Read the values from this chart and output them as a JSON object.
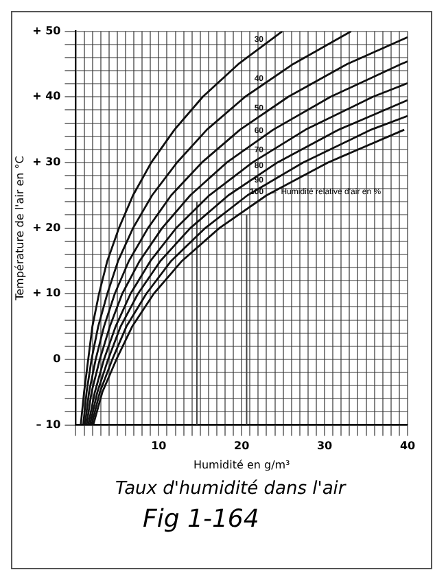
{
  "chart_data": {
    "type": "line",
    "title": "Taux d'humidité dans l'air",
    "xlabel": "Humidité en g/m³",
    "ylabel": "Température de l'air en °C",
    "xlim": [
      0,
      40
    ],
    "ylim": [
      -10,
      50
    ],
    "xticks": [
      {
        "value": 0,
        "label": null
      },
      {
        "value": 1,
        "label": null
      },
      {
        "value": 2,
        "label": null
      },
      {
        "value": 3,
        "label": null
      },
      {
        "value": 4,
        "label": null
      },
      {
        "value": 5,
        "label": null
      },
      {
        "value": 6,
        "label": null
      },
      {
        "value": 7,
        "label": null
      },
      {
        "value": 8,
        "label": null
      },
      {
        "value": 9,
        "label": null
      },
      10,
      {
        "value": 11,
        "label": null
      },
      {
        "value": 12,
        "label": null
      },
      {
        "value": 13,
        "label": null
      },
      {
        "value": 14,
        "label": null
      },
      {
        "value": 15,
        "label": null
      },
      {
        "value": 16,
        "label": null
      },
      {
        "value": 17,
        "label": null
      },
      {
        "value": 18,
        "label": null
      },
      {
        "value": 19,
        "label": null
      },
      20,
      {
        "value": 21,
        "label": null
      },
      {
        "value": 22,
        "label": null
      },
      {
        "value": 23,
        "label": null
      },
      {
        "value": 24,
        "label": null
      },
      {
        "value": 25,
        "label": null
      },
      {
        "value": 26,
        "label": null
      },
      {
        "value": 27,
        "label": null
      },
      {
        "value": 28,
        "label": null
      },
      {
        "value": 29,
        "label": null
      },
      30,
      {
        "value": 31,
        "label": null
      },
      {
        "value": 32,
        "label": null
      },
      {
        "value": 33,
        "label": null
      },
      {
        "value": 34,
        "label": null
      },
      {
        "value": 35,
        "label": null
      },
      {
        "value": 36,
        "label": null
      },
      {
        "value": 37,
        "label": null
      },
      {
        "value": 38,
        "label": null
      },
      {
        "value": 39,
        "label": null
      },
      40
    ],
    "yticks": [
      {
        "value": -10,
        "label": "– 10"
      },
      {
        "value": -8,
        "label": null
      },
      {
        "value": -6,
        "label": null
      },
      {
        "value": -4,
        "label": null
      },
      {
        "value": -2,
        "label": null
      },
      0,
      {
        "value": 2,
        "label": null
      },
      {
        "value": 4,
        "label": null
      },
      {
        "value": 6,
        "label": null
      },
      {
        "value": 8,
        "label": null
      },
      {
        "value": 10,
        "label": "+ 10"
      },
      {
        "value": 12,
        "label": null
      },
      {
        "value": 14,
        "label": null
      },
      {
        "value": 16,
        "label": null
      },
      {
        "value": 18,
        "label": null
      },
      {
        "value": 20,
        "label": "+ 20"
      },
      {
        "value": 22,
        "label": null
      },
      {
        "value": 24,
        "label": null
      },
      {
        "value": 26,
        "label": null
      },
      {
        "value": 28,
        "label": null
      },
      {
        "value": 30,
        "label": "+ 30"
      },
      {
        "value": 32,
        "label": null
      },
      {
        "value": 34,
        "label": null
      },
      {
        "value": 36,
        "label": null
      },
      {
        "value": 38,
        "label": null
      },
      {
        "value": 40,
        "label": "+ 40"
      },
      {
        "value": 42,
        "label": null
      },
      {
        "value": 44,
        "label": null
      },
      {
        "value": 46,
        "label": null
      },
      {
        "value": 48,
        "label": null
      },
      {
        "value": 50,
        "label": "+ 50"
      }
    ],
    "grid": true,
    "marker": "none",
    "line_style": "solid",
    "series": [
      {
        "name": "30",
        "color": "#111111",
        "x": [
          0.6,
          1.0,
          1.5,
          2.0,
          2.8,
          3.8,
          5.2,
          6.9,
          9.1,
          11.9,
          15.3,
          19.6,
          24.9
        ],
        "values": [
          -10,
          -5,
          0,
          5,
          10,
          15,
          20,
          25,
          30,
          35,
          40,
          45,
          50
        ]
      },
      {
        "name": "40",
        "color": "#111111",
        "x": [
          0.9,
          1.3,
          1.9,
          2.7,
          3.8,
          5.1,
          6.9,
          9.2,
          12.2,
          15.8,
          20.4,
          26.2,
          33.2
        ],
        "values": [
          -10,
          -5,
          0,
          5,
          10,
          15,
          20,
          25,
          30,
          35,
          40,
          45,
          50
        ]
      },
      {
        "name": "50",
        "color": "#111111",
        "x": [
          1.1,
          1.6,
          2.4,
          3.4,
          4.7,
          6.4,
          8.7,
          11.5,
          15.2,
          19.8,
          25.6,
          32.7,
          40
        ],
        "values": [
          -10,
          -5,
          0,
          5,
          10,
          15,
          20,
          25,
          30,
          35,
          40,
          45,
          49.1
        ]
      },
      {
        "name": "60",
        "color": "#111111",
        "x": [
          1.3,
          1.9,
          2.9,
          4.1,
          5.6,
          7.7,
          10.4,
          13.8,
          18.2,
          23.8,
          30.7,
          39.2,
          40
        ],
        "values": [
          -10,
          -5,
          0,
          5,
          10,
          15,
          20,
          25,
          30,
          35,
          40,
          45,
          45.4
        ]
      },
      {
        "name": "70",
        "color": "#111111",
        "x": [
          1.5,
          2.3,
          3.4,
          4.8,
          6.6,
          9.0,
          12.1,
          16.1,
          21.3,
          27.7,
          35.8,
          40
        ],
        "values": [
          -10,
          -5,
          0,
          5,
          10,
          15,
          20,
          25,
          30,
          35,
          40,
          42.1
        ]
      },
      {
        "name": "80",
        "color": "#111111",
        "x": [
          1.7,
          2.6,
          3.9,
          5.4,
          7.5,
          10.2,
          13.8,
          18.4,
          24.3,
          31.7,
          40
        ],
        "values": [
          -10,
          -5,
          0,
          5,
          10,
          15,
          20,
          25,
          30,
          35,
          39.5
        ]
      },
      {
        "name": "90",
        "color": "#111111",
        "x": [
          1.9,
          2.9,
          4.4,
          6.1,
          8.5,
          11.5,
          15.6,
          20.7,
          27.4,
          35.6,
          40
        ],
        "values": [
          -10,
          -5,
          0,
          5,
          10,
          15,
          20,
          25,
          30,
          35,
          37.1
        ]
      },
      {
        "name": "100",
        "color": "#111111",
        "x": [
          2.1,
          3.2,
          4.9,
          6.8,
          9.4,
          12.8,
          17.3,
          23.0,
          30.4,
          39.6
        ],
        "values": [
          -10,
          -5,
          0,
          5,
          10,
          15,
          20,
          25,
          30,
          35
        ]
      },
      {
        "color": "#444444",
        "x": [
          14.6,
          14.6
        ],
        "values": [
          -10,
          24
        ]
      },
      {
        "color": "#444444",
        "x": [
          20.6,
          20.6
        ],
        "values": [
          -10,
          22
        ]
      }
    ],
    "annotations": [
      "← Humidité relative d'air en %",
      "Fig 1-164"
    ]
  }
}
